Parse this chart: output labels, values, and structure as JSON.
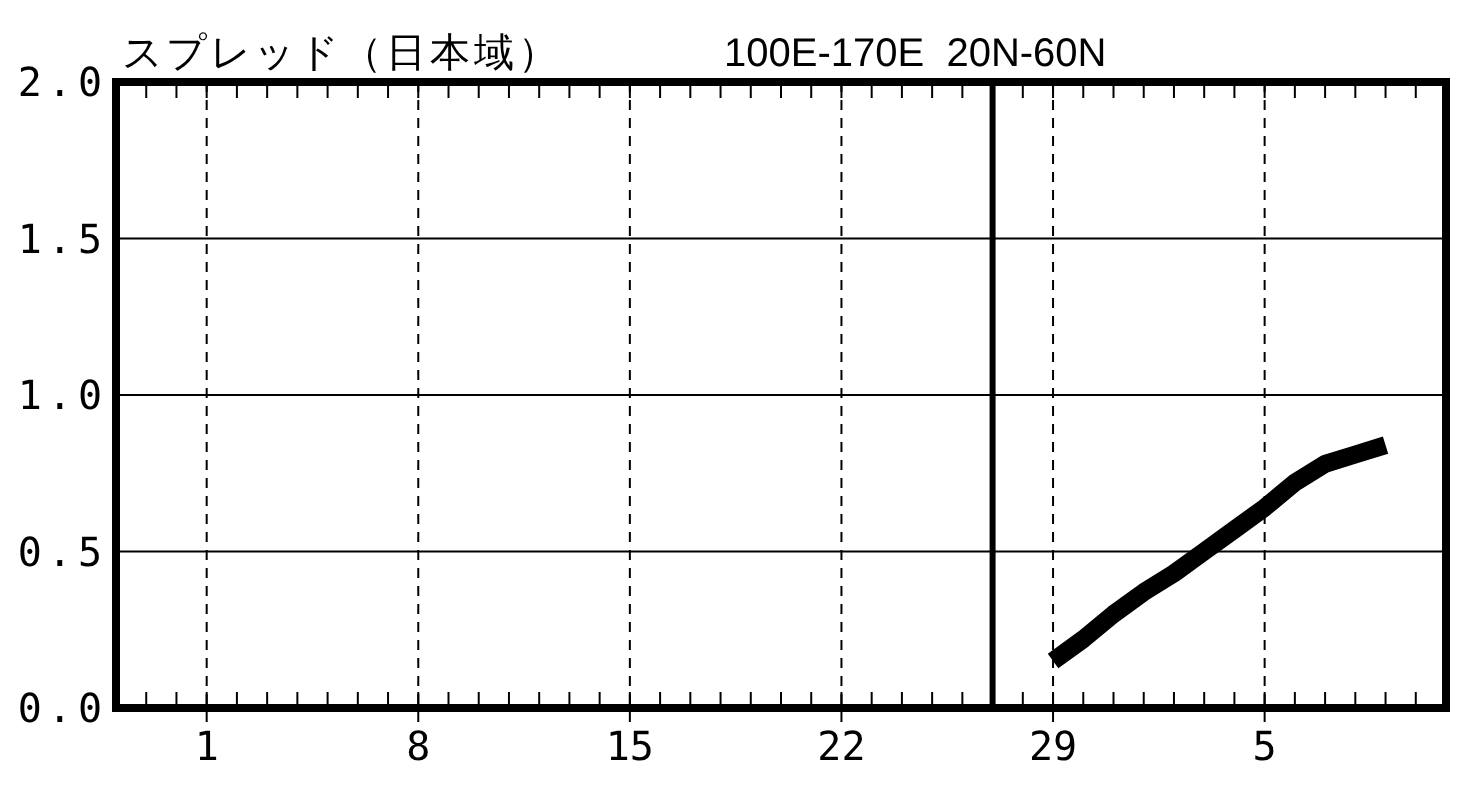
{
  "chart_data": {
    "type": "line",
    "title": "スプレッド（日本域）",
    "subtitle": "100E-170E  20N-60N",
    "x": [
      "--08-29",
      "--08-30",
      "--08-31",
      "--09-01",
      "--09-02",
      "--09-03",
      "--09-04",
      "--09-05",
      "--09-06",
      "--09-07",
      "--09-08",
      "--09-09"
    ],
    "series": [
      {
        "color": "#000000",
        "values": [
          0.15,
          0.22,
          0.3,
          0.37,
          0.43,
          0.5,
          0.57,
          0.64,
          0.72,
          0.78,
          0.81,
          0.84
        ]
      }
    ],
    "line_style": "solid",
    "xlim": [
      "--07-29",
      "--09-11"
    ],
    "xticks": [
      {
        "value": "--07-30",
        "label": null
      },
      {
        "value": "--07-31",
        "label": null
      },
      {
        "value": "--08-01",
        "label": "1"
      },
      {
        "value": "--08-02",
        "label": null
      },
      {
        "value": "--08-03",
        "label": null
      },
      {
        "value": "--08-04",
        "label": null
      },
      {
        "value": "--08-05",
        "label": null
      },
      {
        "value": "--08-06",
        "label": null
      },
      {
        "value": "--08-07",
        "label": null
      },
      {
        "value": "--08-08",
        "label": "8"
      },
      {
        "value": "--08-09",
        "label": null
      },
      {
        "value": "--08-10",
        "label": null
      },
      {
        "value": "--08-11",
        "label": null
      },
      {
        "value": "--08-12",
        "label": null
      },
      {
        "value": "--08-13",
        "label": null
      },
      {
        "value": "--08-14",
        "label": null
      },
      {
        "value": "--08-15",
        "label": "15"
      },
      {
        "value": "--08-16",
        "label": null
      },
      {
        "value": "--08-17",
        "label": null
      },
      {
        "value": "--08-18",
        "label": null
      },
      {
        "value": "--08-19",
        "label": null
      },
      {
        "value": "--08-20",
        "label": null
      },
      {
        "value": "--08-21",
        "label": null
      },
      {
        "value": "--08-22",
        "label": "22"
      },
      {
        "value": "--08-23",
        "label": null
      },
      {
        "value": "--08-24",
        "label": null
      },
      {
        "value": "--08-25",
        "label": null
      },
      {
        "value": "--08-26",
        "label": null
      },
      {
        "value": "--08-27",
        "label": null
      },
      {
        "value": "--08-28",
        "label": null
      },
      {
        "value": "--08-29",
        "label": "29"
      },
      {
        "value": "--08-30",
        "label": null
      },
      {
        "value": "--08-31",
        "label": null
      },
      {
        "value": "--09-01",
        "label": null
      },
      {
        "value": "--09-02",
        "label": null
      },
      {
        "value": "--09-03",
        "label": null
      },
      {
        "value": "--09-04",
        "label": null
      },
      {
        "value": "--09-05",
        "label": "5"
      },
      {
        "value": "--09-06",
        "label": null
      },
      {
        "value": "--09-07",
        "label": null
      },
      {
        "value": "--09-08",
        "label": null
      },
      {
        "value": "--09-09",
        "label": null
      },
      {
        "value": "--09-10",
        "label": null
      }
    ],
    "ylim": [
      0,
      2
    ],
    "yticks": [
      {
        "value": 0,
        "label": "0.0"
      },
      {
        "value": 0.5,
        "label": "0.5"
      },
      {
        "value": 1,
        "label": "1.0"
      },
      {
        "value": 1.5,
        "label": "1.5"
      },
      {
        "value": 2,
        "label": "2.0"
      }
    ],
    "grid": true,
    "ref_lines": [
      {
        "axis": "x",
        "value": "--08-27",
        "color": "#000000"
      }
    ]
  }
}
